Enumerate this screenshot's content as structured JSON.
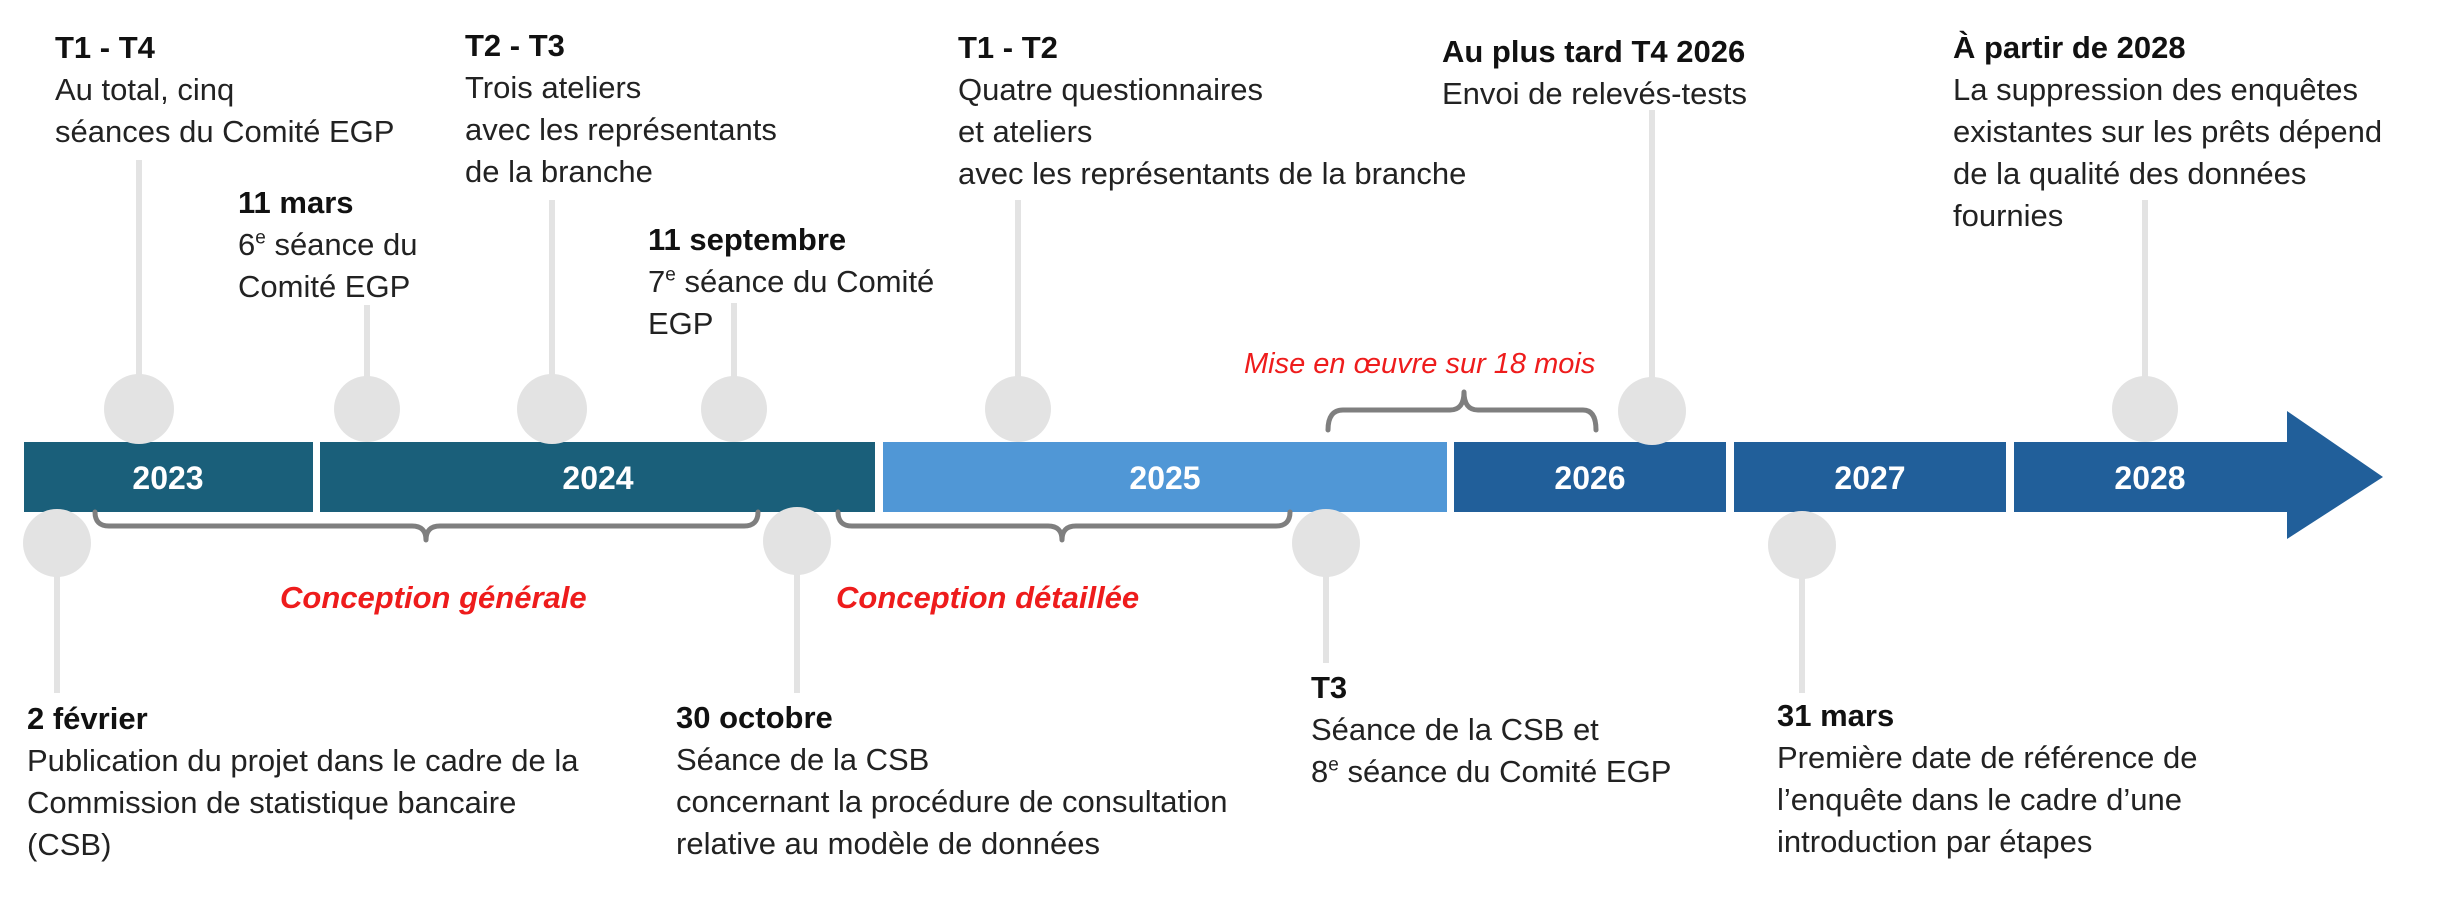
{
  "colors": {
    "y2023": "#1a5f7a",
    "y2024": "#1a5f7a",
    "y2025": "#5097d6",
    "y2026": "#215f9a",
    "y2027": "#215f9a",
    "y2028": "#215f9a",
    "marker": "#e3e3e3",
    "bracket": "#7f7f7f",
    "phase_text": "#ee1c1c"
  },
  "years": [
    {
      "label": "2023"
    },
    {
      "label": "2024"
    },
    {
      "label": "2025"
    },
    {
      "label": "2026"
    },
    {
      "label": "2027"
    },
    {
      "label": "2028"
    }
  ],
  "phases": [
    {
      "label": "Conception générale"
    },
    {
      "label": "Conception détaillée"
    },
    {
      "label": "Mise en œuvre sur 18 mois"
    }
  ],
  "events_top": [
    {
      "title": "T1 - T4",
      "lines": [
        "Au total, cinq",
        "séances du Comité EGP"
      ]
    },
    {
      "title": "11 mars",
      "lines": [
        "6",
        "e",
        " séance du",
        "Comité EGP"
      ]
    },
    {
      "title": "T2 - T3",
      "lines": [
        "Trois ateliers",
        "avec les représentants",
        "de la branche"
      ]
    },
    {
      "title": "11 septembre",
      "lines": [
        "7",
        "e",
        " séance du Comité",
        "EGP"
      ]
    },
    {
      "title": "T1 - T2",
      "lines": [
        "Quatre questionnaires",
        "et ateliers",
        "avec les représentants de la branche"
      ]
    },
    {
      "title": "Au plus tard T4 2026",
      "lines": [
        "Envoi de relevés-tests"
      ]
    },
    {
      "title": "À partir de 2028",
      "lines": [
        "La suppression des enquêtes",
        "existantes sur les prêts dépend",
        "de la qualité des données",
        "fournies"
      ]
    }
  ],
  "events_bottom": [
    {
      "title": "2 février",
      "lines": [
        "Publication du projet dans le cadre de la",
        "Commission de statistique bancaire",
        "(CSB)"
      ]
    },
    {
      "title": "30 octobre",
      "lines": [
        "Séance de la CSB",
        "concernant la procédure de consultation",
        "relative au modèle de données"
      ]
    },
    {
      "title": "T3",
      "lines": [
        "Séance de la CSB et",
        "8",
        "e",
        " séance du Comité EGP"
      ]
    },
    {
      "title": "31 mars",
      "lines": [
        "Première date de référence de",
        "l’enquête dans le cadre d’une",
        "introduction par étapes"
      ]
    }
  ]
}
